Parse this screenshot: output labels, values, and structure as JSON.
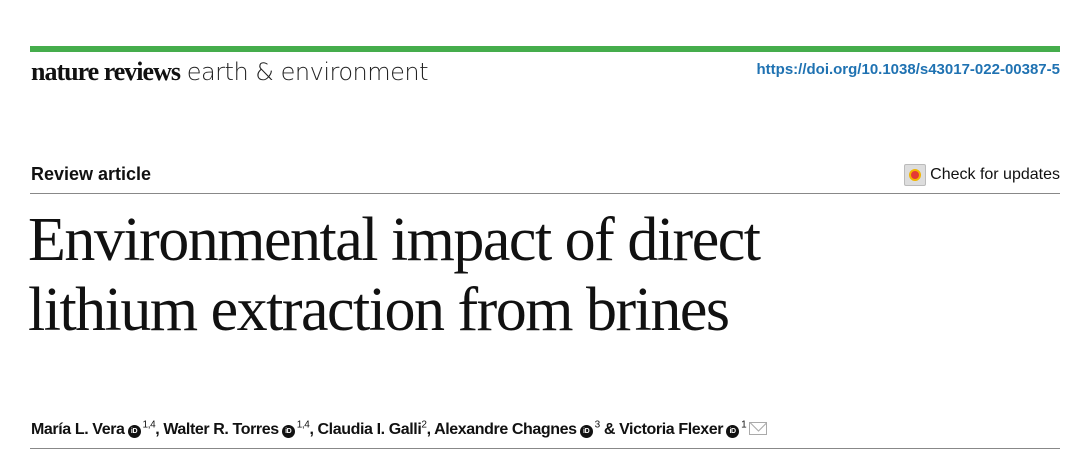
{
  "header": {
    "accent_color": "#45ad4c",
    "journal_brand": "nature reviews",
    "journal_subtitle": "earth & environment",
    "doi": "https://doi.org/10.1038/s43017-022-00387-5"
  },
  "article": {
    "type": "Review article",
    "check_updates": "Check for updates",
    "title_line1": "Environmental impact of direct",
    "title_line2": "lithium extraction from brines",
    "authors": [
      {
        "name": "María L. Vera",
        "orcid": true,
        "aff": "1,4",
        "sep": ", "
      },
      {
        "name": "Walter R. Torres",
        "orcid": true,
        "aff": "1,4",
        "sep": ", "
      },
      {
        "name": "Claudia I. Galli",
        "orcid": false,
        "aff": "2",
        "sep": ", "
      },
      {
        "name": "Alexandre Chagnes",
        "orcid": true,
        "aff": "3",
        "sep": " & "
      },
      {
        "name": "Victoria Flexer",
        "orcid": true,
        "aff": "1",
        "sep": ""
      }
    ],
    "orcid_label": "iD"
  }
}
